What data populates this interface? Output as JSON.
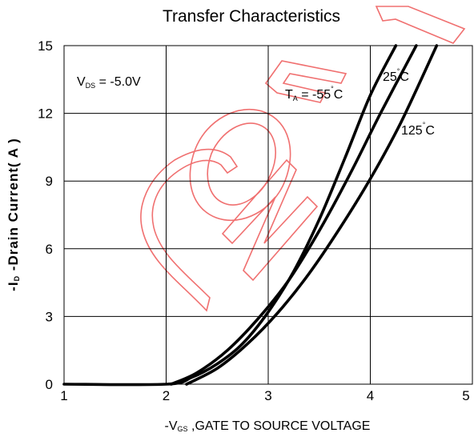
{
  "chart_data": {
    "type": "line",
    "title": "Transfer Characteristics",
    "xlabel": {
      "prefix": "-V",
      "sub": "GS",
      "rest": " ,GATE TO SOURCE VOLTAGE"
    },
    "ylabel": {
      "prefix": "-I",
      "sub": "D",
      "rest": " -Drain Current( A )"
    },
    "xlim": [
      1,
      5
    ],
    "ylim": [
      0,
      15
    ],
    "x_ticks": [
      "1",
      "2",
      "3",
      "4",
      "5"
    ],
    "y_ticks": [
      "0",
      "3",
      "6",
      "9",
      "12",
      "15"
    ],
    "grid": true,
    "condition": {
      "prefix": "V",
      "sub": "DS",
      "rest": " = -5.0V"
    },
    "series": [
      {
        "name": "T A = -55°C",
        "label": {
          "prefix": "T",
          "sub": "A",
          "rest": " = -55",
          "deg": "°",
          "unit": "C"
        },
        "x": [
          1.0,
          2.0,
          2.25,
          2.5,
          2.75,
          3.0,
          3.25,
          3.5,
          3.75,
          4.0,
          4.25
        ],
        "y": [
          0.0,
          0.0,
          0.3,
          0.9,
          1.8,
          3.2,
          5.0,
          7.3,
          10.0,
          12.8,
          15.0
        ]
      },
      {
        "name": "25°C",
        "label": {
          "prefix": "",
          "sub": "",
          "rest": "25",
          "deg": "°",
          "unit": "C"
        },
        "x": [
          2.05,
          2.3,
          2.6,
          2.9,
          3.2,
          3.5,
          3.8,
          4.1,
          4.45
        ],
        "y": [
          0.0,
          0.5,
          1.5,
          2.9,
          4.6,
          6.8,
          9.3,
          12.0,
          15.0
        ]
      },
      {
        "name": "125°C",
        "label": {
          "prefix": "",
          "sub": "",
          "rest": "125",
          "deg": "°",
          "unit": "C"
        },
        "x": [
          2.2,
          2.5,
          2.8,
          3.1,
          3.4,
          3.7,
          4.0,
          4.3,
          4.65
        ],
        "y": [
          0.0,
          0.7,
          1.8,
          3.2,
          4.9,
          6.9,
          9.1,
          11.6,
          15.0
        ]
      }
    ],
    "watermark": "CONFI",
    "colors": {
      "line": "#000000",
      "grid": "#000000",
      "watermark": "#f07070"
    }
  }
}
